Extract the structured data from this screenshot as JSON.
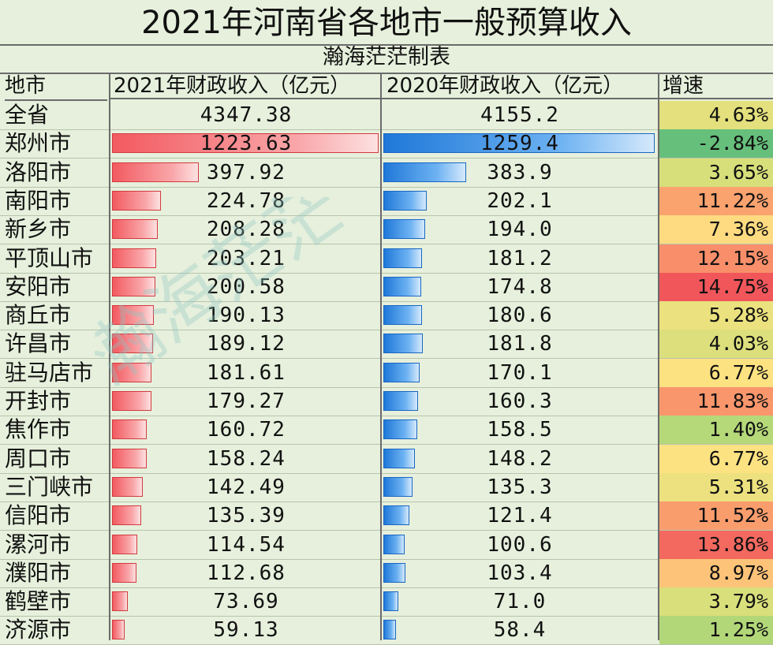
{
  "title": "2021年河南省各地市一般预算收入",
  "subtitle": "瀚海茫茫制表",
  "watermark": "瀚海茫茫",
  "colors": {
    "bar2021": "#f25a60",
    "bar2020": "#1f78d8",
    "grid": "#6b6b6b"
  },
  "chart_data": {
    "type": "table",
    "columns": [
      "地市",
      "2021年财政收入（亿元）",
      "2020年财政收入（亿元）",
      "增速"
    ],
    "total": {
      "city": "全省",
      "v2021": "4347.38",
      "v2020": "4155.2",
      "growth": "4.63%"
    },
    "rows": [
      {
        "city": "郑州市",
        "v2021": "1223.63",
        "v2020": "1259.4",
        "growth": "-2.84%"
      },
      {
        "city": "洛阳市",
        "v2021": "397.92",
        "v2020": "383.9",
        "growth": "3.65%"
      },
      {
        "city": "南阳市",
        "v2021": "224.78",
        "v2020": "202.1",
        "growth": "11.22%"
      },
      {
        "city": "新乡市",
        "v2021": "208.28",
        "v2020": "194.0",
        "growth": "7.36%"
      },
      {
        "city": "平顶山市",
        "v2021": "203.21",
        "v2020": "181.2",
        "growth": "12.15%"
      },
      {
        "city": "安阳市",
        "v2021": "200.58",
        "v2020": "174.8",
        "growth": "14.75%"
      },
      {
        "city": "商丘市",
        "v2021": "190.13",
        "v2020": "180.6",
        "growth": "5.28%"
      },
      {
        "city": "许昌市",
        "v2021": "189.12",
        "v2020": "181.8",
        "growth": "4.03%"
      },
      {
        "city": "驻马店市",
        "v2021": "181.61",
        "v2020": "170.1",
        "growth": "6.77%"
      },
      {
        "city": "开封市",
        "v2021": "179.27",
        "v2020": "160.3",
        "growth": "11.83%"
      },
      {
        "city": "焦作市",
        "v2021": "160.72",
        "v2020": "158.5",
        "growth": "1.40%"
      },
      {
        "city": "周口市",
        "v2021": "158.24",
        "v2020": "148.2",
        "growth": "6.77%"
      },
      {
        "city": "三门峡市",
        "v2021": "142.49",
        "v2020": "135.3",
        "growth": "5.31%"
      },
      {
        "city": "信阳市",
        "v2021": "135.39",
        "v2020": "121.4",
        "growth": "11.52%"
      },
      {
        "city": "漯河市",
        "v2021": "114.54",
        "v2020": "100.6",
        "growth": "13.86%"
      },
      {
        "city": "濮阳市",
        "v2021": "112.68",
        "v2020": "103.4",
        "growth": "8.97%"
      },
      {
        "city": "鹤壁市",
        "v2021": "73.69",
        "v2020": "71.0",
        "growth": "3.79%"
      },
      {
        "city": "济源市",
        "v2021": "59.13",
        "v2020": "58.4",
        "growth": "1.25%"
      }
    ]
  }
}
